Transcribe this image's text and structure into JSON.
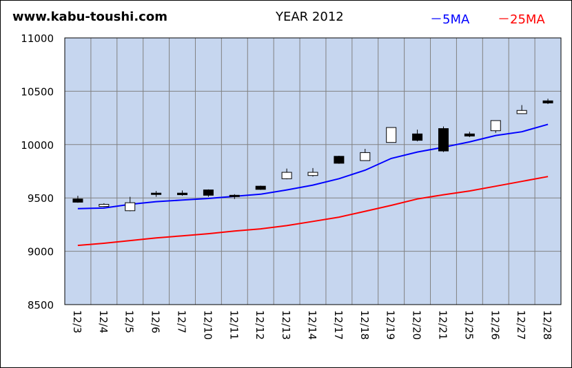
{
  "header": {
    "site": "www.kabu-toushi.com",
    "title": "YEAR 2012",
    "legend_5ma": "－5MA",
    "legend_25ma": "－25MA"
  },
  "colors": {
    "plot_bg": "#c6d6ef",
    "grid": "#808080",
    "ma5": "#0000ff",
    "ma25": "#ff0000",
    "candle_up": "#ffffff",
    "candle_down": "#000000"
  },
  "chart_data": {
    "type": "candlestick",
    "title": "YEAR 2012",
    "ylim": [
      8500,
      11000
    ],
    "yticks": [
      "11000",
      "10500",
      "10000",
      "9500",
      "9000",
      "8500"
    ],
    "grid": true,
    "legend": "top-right",
    "categories": [
      "12/3",
      "12/4",
      "12/5",
      "12/6",
      "12/7",
      "12/10",
      "12/11",
      "12/12",
      "12/13",
      "12/14",
      "12/17",
      "12/18",
      "12/19",
      "12/20",
      "12/21",
      "12/25",
      "12/26",
      "12/27",
      "12/28"
    ],
    "candles": [
      {
        "open": 9490,
        "high": 9520,
        "low": 9455,
        "close": 9460
      },
      {
        "open": 9420,
        "high": 9450,
        "low": 9415,
        "close": 9440
      },
      {
        "open": 9380,
        "high": 9510,
        "low": 9375,
        "close": 9455
      },
      {
        "open": 9545,
        "high": 9565,
        "low": 9510,
        "close": 9535
      },
      {
        "open": 9545,
        "high": 9570,
        "low": 9520,
        "close": 9530
      },
      {
        "open": 9575,
        "high": 9580,
        "low": 9510,
        "close": 9525
      },
      {
        "open": 9525,
        "high": 9535,
        "low": 9490,
        "close": 9520
      },
      {
        "open": 9610,
        "high": 9615,
        "low": 9575,
        "close": 9580
      },
      {
        "open": 9680,
        "high": 9775,
        "low": 9675,
        "close": 9740
      },
      {
        "open": 9710,
        "high": 9780,
        "low": 9700,
        "close": 9740
      },
      {
        "open": 9890,
        "high": 9895,
        "low": 9820,
        "close": 9825
      },
      {
        "open": 9850,
        "high": 9960,
        "low": 9850,
        "close": 9925
      },
      {
        "open": 10020,
        "high": 10160,
        "low": 10020,
        "close": 10160
      },
      {
        "open": 10100,
        "high": 10140,
        "low": 10030,
        "close": 10040
      },
      {
        "open": 10150,
        "high": 10170,
        "low": 9930,
        "close": 9940
      },
      {
        "open": 10100,
        "high": 10120,
        "low": 10070,
        "close": 10080
      },
      {
        "open": 10130,
        "high": 10225,
        "low": 10110,
        "close": 10225
      },
      {
        "open": 10290,
        "high": 10370,
        "low": 10290,
        "close": 10320
      },
      {
        "open": 10410,
        "high": 10430,
        "low": 10380,
        "close": 10390
      }
    ],
    "series": [
      {
        "name": "5MA",
        "values": [
          9400,
          9405,
          9440,
          9465,
          9480,
          9495,
          9515,
          9535,
          9575,
          9620,
          9680,
          9760,
          9870,
          9930,
          9975,
          10025,
          10085,
          10120,
          10190
        ]
      },
      {
        "name": "25MA",
        "values": [
          9055,
          9075,
          9100,
          9125,
          9145,
          9165,
          9190,
          9210,
          9240,
          9280,
          9320,
          9375,
          9430,
          9490,
          9530,
          9565,
          9610,
          9655,
          9700
        ]
      }
    ]
  }
}
